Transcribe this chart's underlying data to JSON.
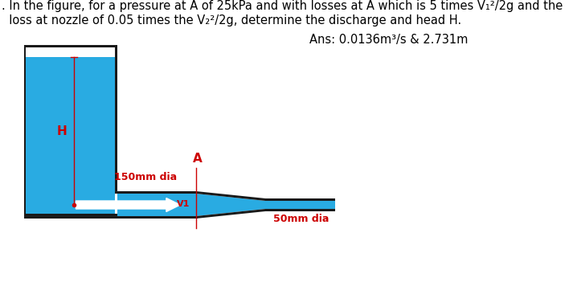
{
  "title_line1": ". In the figure, for a pressure at A of 25kPa and with losses at A which is 5 times V₁²/2g and the",
  "title_line2": "  loss at nozzle of 0.05 times the V₂²/2g, determine the discharge and head H.",
  "answer": "Ans: 0.0136m³/s & 2.731m",
  "tank_color": "#29ABE2",
  "tank_border_color": "#1a1a1a",
  "pipe_border_color": "#1a1a1a",
  "label_H": "H",
  "label_A": "A",
  "label_150": "150mm dia",
  "label_50": "50mm dia",
  "label_V1": "V1",
  "arrow_color": "#FFFFFF",
  "dim_line_color": "#CC0000",
  "text_color_red": "#CC0000",
  "bg_color": "#FFFFFF",
  "font_size_title": 10.5,
  "font_size_ans": 10.5,
  "font_size_labels": 9,
  "font_size_H": 11,
  "font_size_A": 11
}
